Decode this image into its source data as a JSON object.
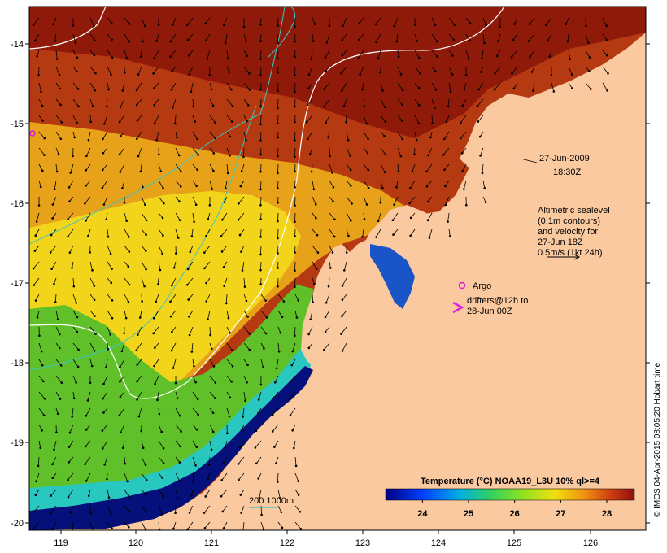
{
  "map": {
    "lon_range": [
      118.6,
      126.7
    ],
    "lat_range": [
      -20.1,
      -13.6
    ],
    "lon_ticks": [
      "119",
      "120",
      "121",
      "122",
      "123",
      "124",
      "125",
      "126"
    ],
    "lat_ticks": [
      "-14",
      "-15",
      "-16",
      "-17",
      "-18",
      "-19",
      "-20"
    ],
    "colors": {
      "land": "#fbc9a0",
      "warm": "#b53a12",
      "hot": "#8f1a0a",
      "mid": "#e8a21a",
      "yellow": "#f2d41a",
      "green": "#5fc02a",
      "cyan": "#28c7c0",
      "blue": "#1a55c8",
      "deep": "#06107a",
      "contour": "#ffffff",
      "isobath": "#3fc6c0",
      "argo": "#d020d0",
      "drifter": "#e020e0"
    }
  },
  "annotations": {
    "date": "27-Jun-2009",
    "time": "18:30Z",
    "altimetry_lines": [
      "Altimetric sealevel",
      "(0.1m contours)",
      "and velocity for",
      "27-Jun 18Z",
      "0.5m/s (1kt 24h)"
    ],
    "argo_label": "Argo",
    "drifters_lines": [
      "drifters@12h to",
      "28-Jun 00Z"
    ],
    "isobath_label": "200  1000m"
  },
  "colorbar": {
    "title": "Temperature (°C) NOAA19_L3U 10% ql>=4",
    "ticks": [
      "24",
      "25",
      "26",
      "27",
      "28"
    ],
    "range": [
      23.2,
      28.6
    ],
    "tick_values": [
      24,
      25,
      26,
      27,
      28
    ]
  },
  "credit": "© IMOS 04-Apr-2015 08:05:20 Hobart time"
}
